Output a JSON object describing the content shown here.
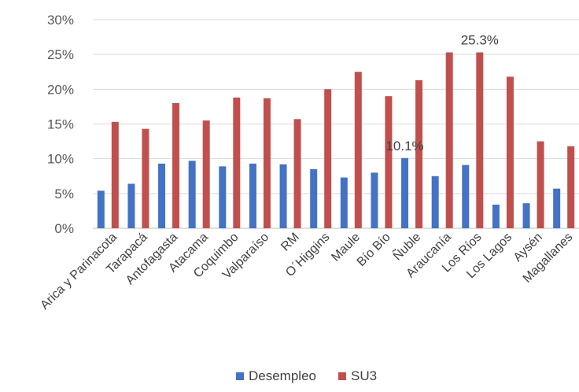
{
  "chart_data": {
    "type": "bar",
    "categories": [
      "Arica y Parinacota",
      "Tarapacá",
      "Antofagasta",
      "Atacama",
      "Coquimbo",
      "Valparaíso",
      "RM",
      "O´Higgins",
      "Maule",
      "Bío Bío",
      "Ñuble",
      "Araucanía",
      "Los Ríos",
      "Los Lagos",
      "Aysén",
      "Magallanes"
    ],
    "series": [
      {
        "name": "Desempleo",
        "color": "#4472C4",
        "values": [
          5.4,
          6.4,
          9.3,
          9.7,
          8.9,
          9.3,
          9.2,
          8.5,
          7.3,
          8.0,
          10.1,
          7.5,
          9.1,
          3.4,
          3.6,
          5.7
        ]
      },
      {
        "name": "SU3",
        "color": "#C0504D",
        "values": [
          15.3,
          14.3,
          18.0,
          15.5,
          18.8,
          18.7,
          15.7,
          20.0,
          22.5,
          19.0,
          21.3,
          25.3,
          25.3,
          21.8,
          12.5,
          11.8
        ]
      }
    ],
    "ylim": [
      0,
      30
    ],
    "yticks": [
      "0%",
      "5%",
      "10%",
      "15%",
      "20%",
      "25%",
      "30%"
    ],
    "grid": true,
    "legend_position": "bottom",
    "data_labels": [
      {
        "series": "Desempleo",
        "category": "Ñuble",
        "text": "10.1%"
      },
      {
        "series": "SU3",
        "category": "Los Ríos",
        "text": "25.3%"
      }
    ]
  }
}
